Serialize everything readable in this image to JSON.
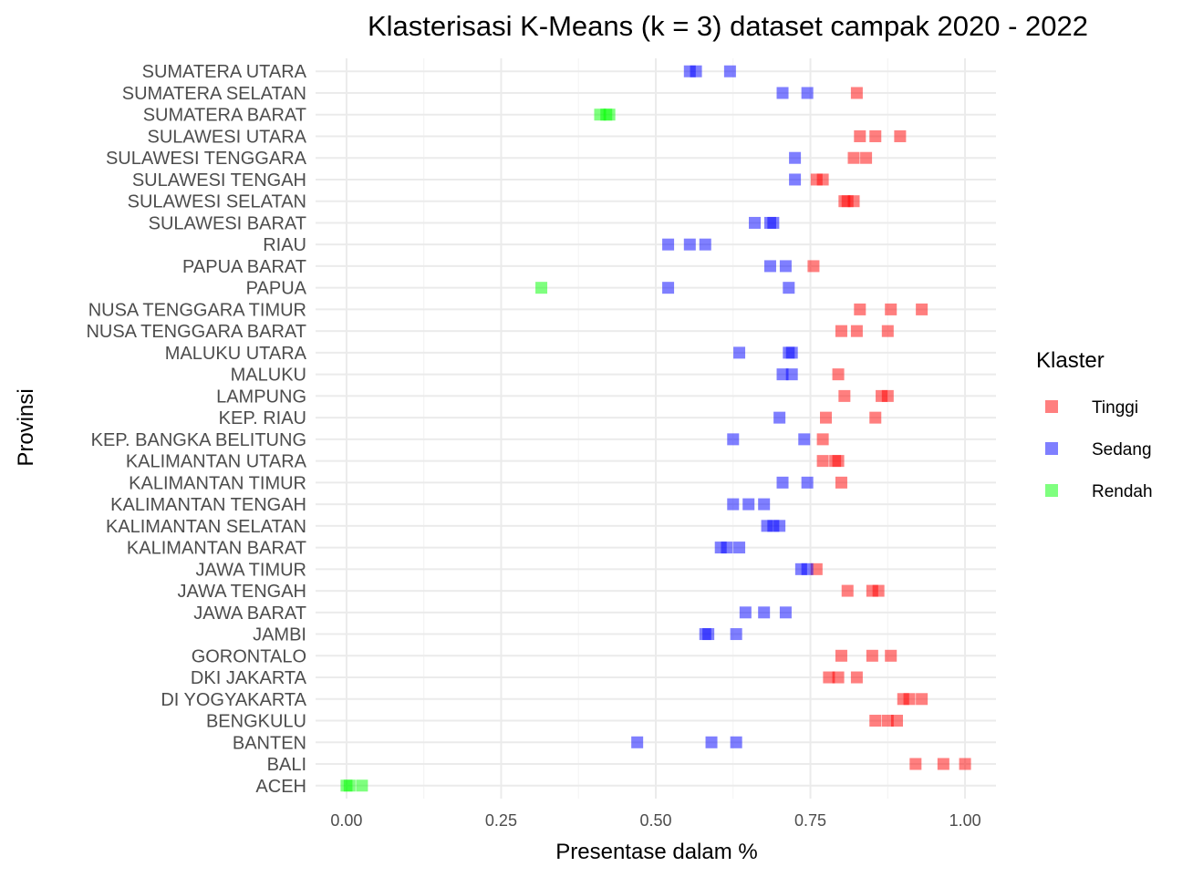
{
  "chart_data": {
    "type": "scatter",
    "title": "Klasterisasi K-Means (k = 3) dataset campak 2020 - 2022",
    "xlabel": "Presentase dalam %",
    "ylabel": "Provinsi",
    "xlim": [
      -0.05,
      1.05
    ],
    "xticks": [
      0,
      0.25,
      0.5,
      0.75,
      1
    ],
    "xtick_labels": [
      "0.00",
      "0.25",
      "0.50",
      "0.75",
      "1.00"
    ],
    "grid": true,
    "legend": {
      "title": "Klaster",
      "placement": "right",
      "items": [
        {
          "label": "Tinggi",
          "color": "#ff0000"
        },
        {
          "label": "Sedang",
          "color": "#0000ff"
        },
        {
          "label": "Rendah",
          "color": "#00ff00"
        }
      ]
    },
    "marker_opacity": 0.5,
    "categories": [
      "ACEH",
      "BALI",
      "BANTEN",
      "BENGKULU",
      "DI YOGYAKARTA",
      "DKI JAKARTA",
      "GORONTALO",
      "JAMBI",
      "JAWA BARAT",
      "JAWA TENGAH",
      "JAWA TIMUR",
      "KALIMANTAN BARAT",
      "KALIMANTAN SELATAN",
      "KALIMANTAN TENGAH",
      "KALIMANTAN TIMUR",
      "KALIMANTAN UTARA",
      "KEP. BANGKA BELITUNG",
      "KEP. RIAU",
      "LAMPUNG",
      "MALUKU",
      "MALUKU UTARA",
      "NUSA TENGGARA BARAT",
      "NUSA TENGGARA TIMUR",
      "PAPUA",
      "PAPUA BARAT",
      "RIAU",
      "SULAWESI BARAT",
      "SULAWESI SELATAN",
      "SULAWESI TENGAH",
      "SULAWESI TENGGARA",
      "SULAWESI UTARA",
      "SUMATERA BARAT",
      "SUMATERA SELATAN",
      "SUMATERA UTARA"
    ],
    "series": [
      {
        "name": "Tinggi",
        "points": [
          [
            "BALI",
            0.92
          ],
          [
            "BALI",
            0.965
          ],
          [
            "BALI",
            1.0
          ],
          [
            "BENGKULU",
            0.855
          ],
          [
            "BENGKULU",
            0.875
          ],
          [
            "BENGKULU",
            0.89
          ],
          [
            "DI YOGYAKARTA",
            0.9
          ],
          [
            "DI YOGYAKARTA",
            0.91
          ],
          [
            "DI YOGYAKARTA",
            0.93
          ],
          [
            "DKI JAKARTA",
            0.78
          ],
          [
            "DKI JAKARTA",
            0.795
          ],
          [
            "DKI JAKARTA",
            0.825
          ],
          [
            "GORONTALO",
            0.8
          ],
          [
            "GORONTALO",
            0.85
          ],
          [
            "GORONTALO",
            0.88
          ],
          [
            "JAWA TENGAH",
            0.81
          ],
          [
            "JAWA TENGAH",
            0.85
          ],
          [
            "JAWA TENGAH",
            0.86
          ],
          [
            "JAWA TIMUR",
            0.76
          ],
          [
            "KALIMANTAN TIMUR",
            0.8
          ],
          [
            "KALIMANTAN UTARA",
            0.77
          ],
          [
            "KALIMANTAN UTARA",
            0.79
          ],
          [
            "KALIMANTAN UTARA",
            0.795
          ],
          [
            "KEP. BANGKA BELITUNG",
            0.77
          ],
          [
            "KEP. RIAU",
            0.775
          ],
          [
            "KEP. RIAU",
            0.855
          ],
          [
            "LAMPUNG",
            0.805
          ],
          [
            "LAMPUNG",
            0.865
          ],
          [
            "LAMPUNG",
            0.875
          ],
          [
            "MALUKU",
            0.795
          ],
          [
            "NUSA TENGGARA BARAT",
            0.8
          ],
          [
            "NUSA TENGGARA BARAT",
            0.825
          ],
          [
            "NUSA TENGGARA BARAT",
            0.875
          ],
          [
            "NUSA TENGGARA TIMUR",
            0.83
          ],
          [
            "NUSA TENGGARA TIMUR",
            0.88
          ],
          [
            "NUSA TENGGARA TIMUR",
            0.93
          ],
          [
            "PAPUA BARAT",
            0.755
          ],
          [
            "SULAWESI SELATAN",
            0.805
          ],
          [
            "SULAWESI SELATAN",
            0.81
          ],
          [
            "SULAWESI SELATAN",
            0.82
          ],
          [
            "SULAWESI TENGAH",
            0.76
          ],
          [
            "SULAWESI TENGAH",
            0.77
          ],
          [
            "SULAWESI TENGGARA",
            0.82
          ],
          [
            "SULAWESI TENGGARA",
            0.84
          ],
          [
            "SULAWESI UTARA",
            0.83
          ],
          [
            "SULAWESI UTARA",
            0.855
          ],
          [
            "SULAWESI UTARA",
            0.895
          ],
          [
            "SUMATERA SELATAN",
            0.825
          ]
        ]
      },
      {
        "name": "Sedang",
        "points": [
          [
            "BANTEN",
            0.47
          ],
          [
            "BANTEN",
            0.59
          ],
          [
            "BANTEN",
            0.63
          ],
          [
            "JAMBI",
            0.58
          ],
          [
            "JAMBI",
            0.585
          ],
          [
            "JAMBI",
            0.63
          ],
          [
            "JAWA BARAT",
            0.645
          ],
          [
            "JAWA BARAT",
            0.675
          ],
          [
            "JAWA BARAT",
            0.71
          ],
          [
            "JAWA TIMUR",
            0.735
          ],
          [
            "JAWA TIMUR",
            0.745
          ],
          [
            "KALIMANTAN BARAT",
            0.605
          ],
          [
            "KALIMANTAN BARAT",
            0.615
          ],
          [
            "KALIMANTAN BARAT",
            0.635
          ],
          [
            "KALIMANTAN SELATAN",
            0.68
          ],
          [
            "KALIMANTAN SELATAN",
            0.69
          ],
          [
            "KALIMANTAN SELATAN",
            0.7
          ],
          [
            "KALIMANTAN TENGAH",
            0.625
          ],
          [
            "KALIMANTAN TENGAH",
            0.65
          ],
          [
            "KALIMANTAN TENGAH",
            0.675
          ],
          [
            "KALIMANTAN TIMUR",
            0.705
          ],
          [
            "KALIMANTAN TIMUR",
            0.745
          ],
          [
            "KEP. BANGKA BELITUNG",
            0.625
          ],
          [
            "KEP. BANGKA BELITUNG",
            0.74
          ],
          [
            "KEP. RIAU",
            0.7
          ],
          [
            "MALUKU",
            0.705
          ],
          [
            "MALUKU",
            0.72
          ],
          [
            "MALUKU UTARA",
            0.635
          ],
          [
            "MALUKU UTARA",
            0.715
          ],
          [
            "MALUKU UTARA",
            0.72
          ],
          [
            "PAPUA",
            0.52
          ],
          [
            "PAPUA",
            0.715
          ],
          [
            "PAPUA BARAT",
            0.685
          ],
          [
            "PAPUA BARAT",
            0.71
          ],
          [
            "RIAU",
            0.52
          ],
          [
            "RIAU",
            0.555
          ],
          [
            "RIAU",
            0.58
          ],
          [
            "SULAWESI BARAT",
            0.66
          ],
          [
            "SULAWESI BARAT",
            0.685
          ],
          [
            "SULAWESI BARAT",
            0.69
          ],
          [
            "SULAWESI TENGAH",
            0.725
          ],
          [
            "SULAWESI TENGGARA",
            0.725
          ],
          [
            "SUMATERA SELATAN",
            0.705
          ],
          [
            "SUMATERA SELATAN",
            0.745
          ],
          [
            "SUMATERA UTARA",
            0.555
          ],
          [
            "SUMATERA UTARA",
            0.565
          ],
          [
            "SUMATERA UTARA",
            0.62
          ]
        ]
      },
      {
        "name": "Rendah",
        "points": [
          [
            "ACEH",
            0.0
          ],
          [
            "ACEH",
            0.005
          ],
          [
            "ACEH",
            0.025
          ],
          [
            "PAPUA",
            0.315
          ],
          [
            "SUMATERA BARAT",
            0.41
          ],
          [
            "SUMATERA BARAT",
            0.42
          ],
          [
            "SUMATERA BARAT",
            0.425
          ]
        ]
      }
    ]
  }
}
